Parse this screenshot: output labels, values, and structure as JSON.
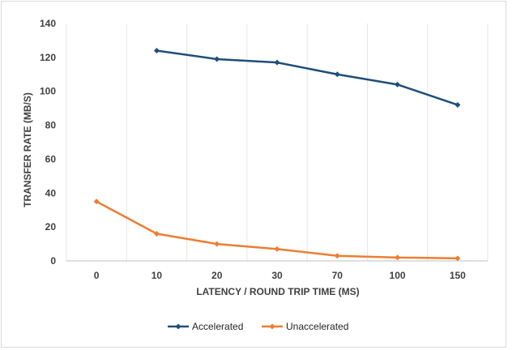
{
  "chart_data": {
    "type": "line",
    "title": "",
    "xlabel": "LATENCY / ROUND TRIP TIME (MS)",
    "ylabel": "TRANSFER RATE (MB/S)",
    "categories": [
      "0",
      "10",
      "20",
      "30",
      "70",
      "100",
      "150"
    ],
    "ylim": [
      0,
      140
    ],
    "yticks": [
      0,
      20,
      40,
      60,
      80,
      100,
      120,
      140
    ],
    "grid": "vertical",
    "legend_position": "bottom",
    "series": [
      {
        "name": "Accelerated",
        "color": "#1f4e79",
        "values": [
          null,
          124,
          119,
          117,
          110,
          104,
          92
        ]
      },
      {
        "name": "Unaccelerated",
        "color": "#ed7d31",
        "values": [
          35,
          16,
          10,
          7,
          3,
          2,
          1.5
        ]
      }
    ]
  }
}
